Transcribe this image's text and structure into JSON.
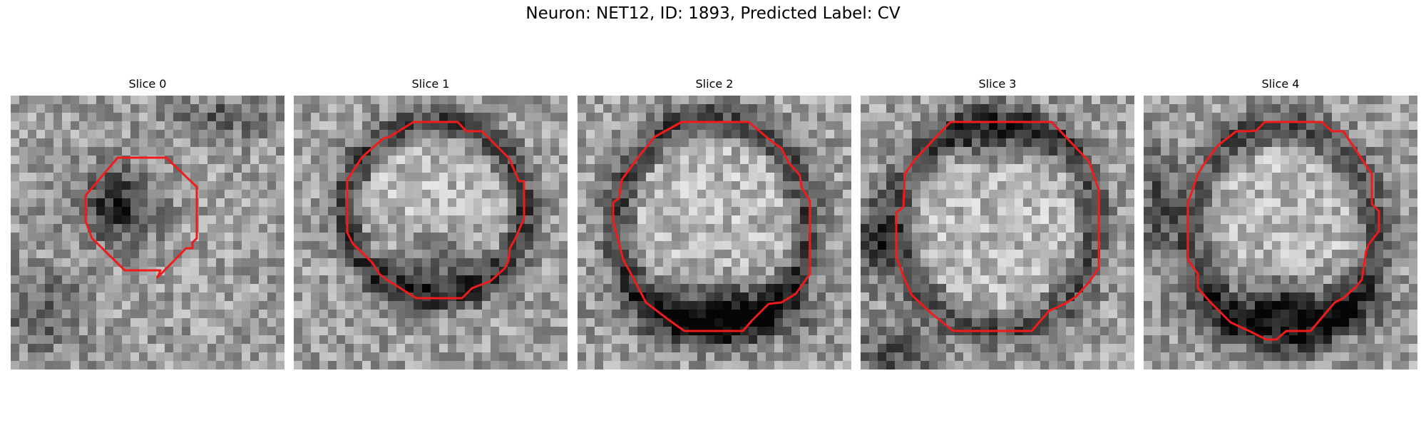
{
  "figure": {
    "title": "Neuron: NET12, ID: 1893, Predicted Label: CV"
  },
  "panels": [
    {
      "title": "Slice 0"
    },
    {
      "title": "Slice 1"
    },
    {
      "title": "Slice 2"
    },
    {
      "title": "Slice 3"
    },
    {
      "title": "Slice 4"
    }
  ],
  "colors": {
    "contour": "#ee1c1c",
    "background": "#ffffff"
  }
}
